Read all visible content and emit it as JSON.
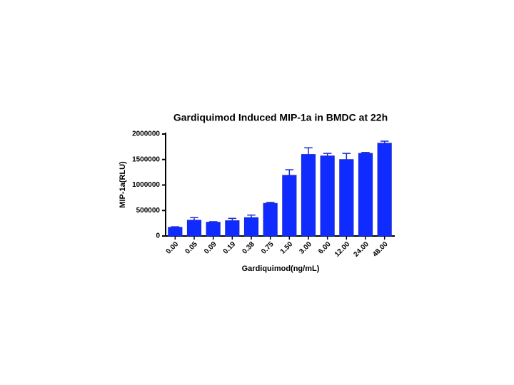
{
  "chart_data": {
    "type": "bar",
    "title": "Gardiquimod Induced MIP-1a in BMDC at 22h",
    "x_label": "Gardiquimod(ng/mL)",
    "y_label": "MIP-1a(RLU)",
    "categories": [
      "0.00",
      "0.05",
      "0.09",
      "0.19",
      "0.38",
      "0.75",
      "1.50",
      "3.00",
      "6.00",
      "12.00",
      "24.00",
      "48.00"
    ],
    "values": [
      170000,
      310000,
      270000,
      300000,
      360000,
      640000,
      1190000,
      1600000,
      1570000,
      1500000,
      1620000,
      1820000
    ],
    "errors": [
      10000,
      50000,
      10000,
      45000,
      50000,
      20000,
      110000,
      130000,
      50000,
      120000,
      20000,
      40000
    ],
    "color": "#0f2bff",
    "ylim": [
      0,
      2000000
    ],
    "yticks": [
      0,
      500000,
      1000000,
      1500000,
      2000000
    ]
  }
}
